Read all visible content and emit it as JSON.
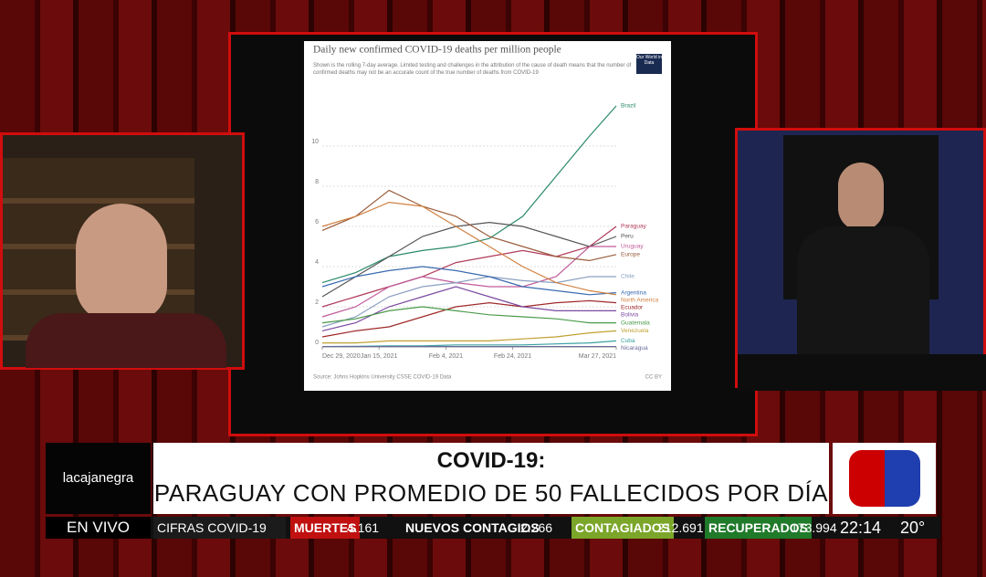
{
  "chart": {
    "type": "line",
    "title": "Daily new confirmed COVID-19 deaths per million people",
    "subtitle": "Shown is the rolling 7-day average. Limited testing and challenges in the attribution of the cause of death means that the number of confirmed deaths may not be an accurate count of the true number of deaths from COVID-19",
    "logo": "Our World in Data",
    "source": "Source: Johns Hopkins University CSSE COVID-19 Data",
    "license": "CC BY",
    "x": [
      "2020-12-29",
      "2021-01-08",
      "2021-01-18",
      "2021-01-28",
      "2021-02-07",
      "2021-02-17",
      "2021-02-27",
      "2021-03-09",
      "2021-03-19",
      "2021-03-27"
    ],
    "xlim": [
      "2020-12-29",
      "2021-03-27"
    ],
    "xticks": [
      {
        "value": "2020-12-29",
        "label": "Dec 29, 2020"
      },
      {
        "value": "2021-01-15",
        "label": "Jan 15, 2021"
      },
      {
        "value": "2021-02-04",
        "label": "Feb 4, 2021"
      },
      {
        "value": "2021-02-24",
        "label": "Feb 24, 2021"
      },
      {
        "value": "2021-03-27",
        "label": "Mar 27, 2021"
      }
    ],
    "ylim": [
      0,
      12.5
    ],
    "yticks": [
      0,
      2,
      4,
      6,
      8,
      10
    ],
    "grid": true,
    "series": [
      {
        "name": "Brazil",
        "color": "#2a8a6a",
        "values": [
          3.2,
          3.7,
          4.5,
          4.8,
          5.0,
          5.4,
          6.5,
          8.5,
          10.5,
          12
        ]
      },
      {
        "name": "Paraguay",
        "color": "#b03a5b",
        "values": [
          2,
          2.5,
          3,
          3.5,
          4.2,
          4.5,
          4.8,
          4.5,
          5,
          6
        ]
      },
      {
        "name": "Peru",
        "color": "#555555",
        "values": [
          2.5,
          3.5,
          4.5,
          5.5,
          6,
          6.2,
          6,
          5.5,
          5,
          5.5
        ]
      },
      {
        "name": "Uruguay",
        "color": "#c05a9a",
        "values": [
          1.5,
          2,
          3,
          3.5,
          3.2,
          3,
          3,
          3.5,
          5,
          5
        ]
      },
      {
        "name": "Europe",
        "color": "#9a5c3a",
        "values": [
          5.8,
          6.5,
          7.8,
          7,
          6.5,
          5.5,
          5,
          4.5,
          4.3,
          4.6
        ]
      },
      {
        "name": "Chile",
        "color": "#8aa0c0",
        "values": [
          1,
          1.5,
          2.5,
          3,
          3.2,
          3.5,
          3.3,
          3.2,
          3.5,
          3.5
        ]
      },
      {
        "name": "Argentina",
        "color": "#3a6ab0",
        "values": [
          3,
          3.5,
          3.8,
          4,
          3.8,
          3.5,
          3,
          2.8,
          2.6,
          2.7
        ]
      },
      {
        "name": "North America",
        "color": "#d08040",
        "values": [
          6,
          6.5,
          7.2,
          7,
          6,
          5,
          4,
          3.2,
          2.8,
          2.6
        ]
      },
      {
        "name": "Ecuador",
        "color": "#a02a2a",
        "values": [
          0.5,
          0.8,
          1,
          1.5,
          2,
          2.2,
          2,
          2.2,
          2.3,
          2.2
        ]
      },
      {
        "name": "Bolivia",
        "color": "#7a4aa0",
        "values": [
          0.8,
          1.2,
          2,
          2.5,
          3,
          2.5,
          2,
          1.8,
          1.8,
          1.8
        ]
      },
      {
        "name": "Guatemala",
        "color": "#4a9a4a",
        "values": [
          1.2,
          1.4,
          1.8,
          2,
          1.8,
          1.6,
          1.5,
          1.4,
          1.2,
          1.2
        ]
      },
      {
        "name": "Venezuela",
        "color": "#c0a030",
        "values": [
          0.2,
          0.2,
          0.3,
          0.3,
          0.3,
          0.3,
          0.4,
          0.5,
          0.7,
          0.8
        ]
      },
      {
        "name": "Cuba",
        "color": "#3aa0a0",
        "values": [
          0.02,
          0.03,
          0.05,
          0.05,
          0.1,
          0.1,
          0.1,
          0.15,
          0.2,
          0.3
        ]
      },
      {
        "name": "Nicaragua",
        "color": "#6a6a9a",
        "values": [
          0.02,
          0.02,
          0.02,
          0.02,
          0.02,
          0.02,
          0.02,
          0.02,
          0.02,
          0.02
        ]
      }
    ]
  },
  "broadcast": {
    "show": "lacajanegra",
    "headline_kicker": "COVID-19:",
    "headline": "PARAGUAY CON PROMEDIO DE 50 FALLECIDOS POR DÍA",
    "live": "EN VIVO",
    "ticker": {
      "label": "CIFRAS COVID-19",
      "stats": [
        {
          "label": "MUERTES",
          "value": "4.161"
        },
        {
          "label": "NUEVOS CONTAGIOS",
          "value": "2.266"
        },
        {
          "label": "CONTAGIADOS",
          "value": "212.691"
        },
        {
          "label": "RECUPERADOS",
          "value": "173.994"
        }
      ]
    },
    "time": "22:14",
    "temperature": "20°"
  }
}
